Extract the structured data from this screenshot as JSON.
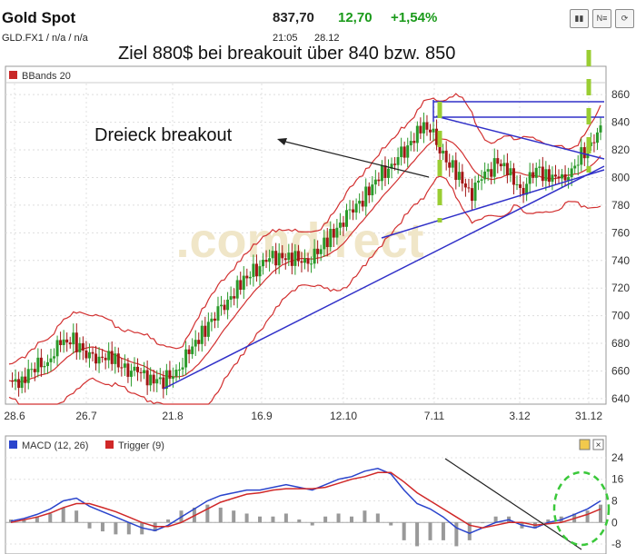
{
  "header": {
    "title": "Gold Spot",
    "ticker": "GLD.FX1  /  n/a  /  n/a",
    "price": "837,70",
    "change": "12,70",
    "change_pct": "+1,54%",
    "time": "21:05",
    "date": "28.12",
    "buttons": [
      "bar-chart-icon",
      "news-icon",
      "settings-icon"
    ]
  },
  "annotations": {
    "top_note": "Ziel 880$ bei breakouit über 840 bzw. 850",
    "triangle_note": "Dreieck breakout",
    "watermark": ".comdirect"
  },
  "chart_data": [
    {
      "type": "candlestick",
      "legend": "BBands 20",
      "x_tick_labels": [
        "28.6",
        "26.7",
        "21.8",
        "16.9",
        "12.10",
        "7.11",
        "3.12",
        "31.12"
      ],
      "y_tick_labels": [
        "640",
        "660",
        "680",
        "700",
        "720",
        "740",
        "760",
        "780",
        "800",
        "820",
        "840",
        "860"
      ],
      "ylim": [
        636,
        868
      ],
      "close_approx": [
        650,
        655,
        662,
        668,
        678,
        684,
        670,
        672,
        668,
        662,
        658,
        656,
        652,
        660,
        672,
        688,
        700,
        712,
        722,
        732,
        740,
        744,
        742,
        738,
        745,
        758,
        770,
        780,
        790,
        802,
        812,
        822,
        838,
        830,
        812,
        800,
        790,
        802,
        812,
        800,
        792,
        806,
        802,
        796,
        810,
        820,
        837.7
      ],
      "colors": {
        "up": "#2a9a2a",
        "down": "#a31515",
        "bands": "#d23030",
        "trendlines": "#3030c8"
      }
    },
    {
      "type": "line",
      "legend": [
        "MACD (12, 26)",
        "Trigger (9)"
      ],
      "y_tick_labels": [
        "24",
        "16",
        "8",
        "0",
        "-8"
      ],
      "ylim": [
        -10,
        26
      ],
      "series": [
        {
          "name": "MACD (12, 26)",
          "color": "#2a44cc",
          "values": [
            0.5,
            1.5,
            3,
            5,
            8,
            9,
            6,
            4,
            2,
            0,
            -2,
            -3,
            -1,
            2,
            5,
            8,
            10,
            11,
            12,
            12,
            13,
            14,
            13,
            12,
            14,
            16,
            17,
            19,
            20,
            18,
            12,
            7,
            5,
            2,
            -2,
            -4,
            -2,
            0,
            1,
            -1,
            -2,
            0,
            1,
            3,
            5,
            8
          ]
        },
        {
          "name": "Trigger (9)",
          "color": "#d02828",
          "values": [
            0,
            1,
            2,
            3.5,
            5.5,
            7,
            7,
            5.5,
            4,
            2,
            0,
            -1.5,
            -1.5,
            0,
            2.5,
            5,
            7.5,
            9,
            10.5,
            11,
            12,
            12.5,
            12.5,
            12.5,
            13,
            14.5,
            16,
            17,
            18.5,
            18.5,
            15,
            11,
            8,
            5,
            2,
            -1,
            -2,
            -1,
            0,
            0,
            -1,
            -0.5,
            0,
            1.5,
            3,
            5
          ]
        }
      ],
      "histogram_color": "#999999"
    }
  ]
}
